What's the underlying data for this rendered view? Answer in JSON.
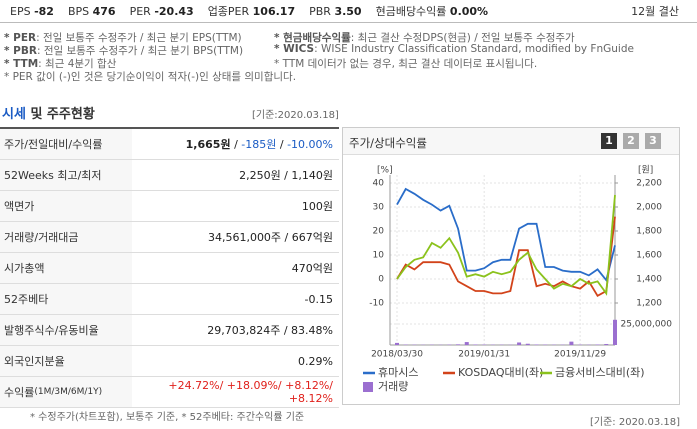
{
  "top_bar": {
    "items": [
      {
        "label": "EPS",
        "value": "-82"
      },
      {
        "label": "BPS",
        "value": "476"
      },
      {
        "label": "PER",
        "value": "-20.43"
      },
      {
        "label": "업종PER",
        "value": "106.17"
      },
      {
        "label": "PBR",
        "value": "3.50"
      },
      {
        "label": "현금배당수익률",
        "value": "0.00%"
      }
    ],
    "settlement": "12월 결산"
  },
  "notes": {
    "left": [
      {
        "term": "* PER",
        "desc": ": 전일 보통주 수정주가 / 최근 분기 EPS(TTM)"
      },
      {
        "term": "* PBR",
        "desc": ": 전일 보통주 수정주가 / 최근 분기 BPS(TTM)"
      },
      {
        "term": "* TTM",
        "desc": ": 최근 4분기 합산"
      }
    ],
    "right": [
      {
        "term": "* 현금배당수익률",
        "desc": ": 최근 결산 수정DPS(현금) / 전일 보통주 수정주가"
      },
      {
        "term": "* WICS",
        "desc": ": WISE Industry Classification Standard, modified by FnGuide"
      },
      {
        "term": "",
        "desc": "* TTM 데이터가 없는 경우, 최근 결산 데이터로 표시됩니다."
      }
    ],
    "bottom": "* PER 값이 (-)인 것은 당기순이익이 적자(-)인 상태를 의미합니다."
  },
  "section": {
    "title_highlight": "시세",
    "title_rest": " 및 주주현황",
    "date": "[기준:2020.03.18]"
  },
  "table": {
    "rows": [
      {
        "label": "주가/전일대비/수익률",
        "parts": [
          {
            "text": "1,665원",
            "color": "#222",
            "bold": true
          },
          {
            "text": " / ",
            "color": "#222"
          },
          {
            "text": "-185원",
            "color": "#1a5bc4"
          },
          {
            "text": " / ",
            "color": "#222"
          },
          {
            "text": "-10.00%",
            "color": "#1a5bc4"
          }
        ]
      },
      {
        "label": "52Weeks 최고/최저",
        "parts": [
          {
            "text": "2,250원 / 1,140원",
            "color": "#222"
          }
        ]
      },
      {
        "label": "액면가",
        "parts": [
          {
            "text": "100원",
            "color": "#222"
          }
        ]
      },
      {
        "label": "거래량/거래대금",
        "parts": [
          {
            "text": "34,561,000주 / 667억원",
            "color": "#222"
          }
        ]
      },
      {
        "label": "시가총액",
        "parts": [
          {
            "text": "470억원",
            "color": "#222"
          }
        ]
      },
      {
        "label": "52주베타",
        "parts": [
          {
            "text": "-0.15",
            "color": "#222"
          }
        ]
      },
      {
        "label": "발행주식수/유동비율",
        "parts": [
          {
            "text": "29,703,824주 / 83.48%",
            "color": "#222"
          }
        ]
      },
      {
        "label": "외국인지분율",
        "parts": [
          {
            "text": "0.29%",
            "color": "#222"
          }
        ]
      },
      {
        "label": "수익률",
        "label_small": " (1M/3M/6M/1Y)",
        "parts": [
          {
            "text": "+24.72%/ +18.09%/ +8.12%/ +8.12%",
            "color": "#e0201b"
          }
        ]
      }
    ],
    "footnote": "* 수정주가(차트포함), 보통주 기준, * 52주베타: 주간수익률 기준",
    "date": "[기준: 2020.03.18]"
  },
  "chart_panel": {
    "title": "주가/상대수익률",
    "buttons": [
      "1",
      "2",
      "3"
    ]
  },
  "chart_data": {
    "type": "line",
    "ylabel": "[%]",
    "y2label": "[원]",
    "categories": [
      "2018/03/30",
      null,
      null,
      null,
      null,
      null,
      null,
      null,
      null,
      null,
      "2019/01/31",
      null,
      null,
      null,
      null,
      null,
      null,
      null,
      null,
      null,
      null,
      "2019/11/29",
      null,
      null,
      null,
      null
    ],
    "ylim": [
      -10,
      40
    ],
    "yticks": [
      40,
      30,
      20,
      10,
      0,
      -10
    ],
    "y2lim": [
      1200,
      2200
    ],
    "y2ticks": [
      {
        "value": 2200,
        "label": "2,200"
      },
      {
        "value": 2000,
        "label": "2,000"
      },
      {
        "value": 1800,
        "label": "1,800"
      },
      {
        "value": 1600,
        "label": "1,600"
      },
      {
        "value": 1400,
        "label": "1,400"
      },
      {
        "value": 1200,
        "label": "1,200"
      }
    ],
    "volume_lim": [
      0,
      25000000
    ],
    "volume_ticks": [
      {
        "value": 25000000,
        "label": "25,000,000"
      }
    ],
    "grid": true,
    "series": [
      {
        "name": "휴마시스",
        "color": "#2a6dc9",
        "axis": "y2",
        "values": [
          2020,
          2150,
          2110,
          2060,
          2020,
          1970,
          2010,
          1820,
          1470,
          1470,
          1490,
          1540,
          1560,
          1560,
          1820,
          1860,
          1860,
          1500,
          1500,
          1470,
          1460,
          1460,
          1430,
          1480,
          1390,
          1680
        ]
      },
      {
        "name": "KOSDAQ대비(좌)",
        "color": "#d2431a",
        "values": [
          0,
          6,
          4,
          7,
          7,
          7,
          6,
          -1,
          -3,
          -5,
          -5,
          -6,
          -6,
          -5,
          12,
          12,
          -3,
          -2,
          -3,
          -1,
          -3,
          -4,
          -1,
          -7,
          -5,
          26
        ]
      },
      {
        "name": "금융서비스대비(좌)",
        "color": "#8bc21c",
        "values": [
          0,
          5,
          8,
          9,
          15,
          13,
          17,
          11,
          1,
          2,
          1,
          3,
          2,
          3,
          8,
          11,
          4,
          0,
          -4,
          -2,
          -3,
          0,
          -2,
          -1,
          -6,
          35
        ]
      },
      {
        "name": "거래량",
        "color": "#9b6fd0",
        "type": "bar",
        "axis": "volume",
        "values": [
          2500000,
          500000,
          400000,
          300000,
          400000,
          300000,
          500000,
          800000,
          3500000,
          600000,
          500000,
          400000,
          400000,
          300000,
          3000000,
          1500000,
          600000,
          500000,
          400000,
          400000,
          4000000,
          500000,
          400000,
          600000,
          1200000,
          30000000
        ]
      }
    ]
  }
}
